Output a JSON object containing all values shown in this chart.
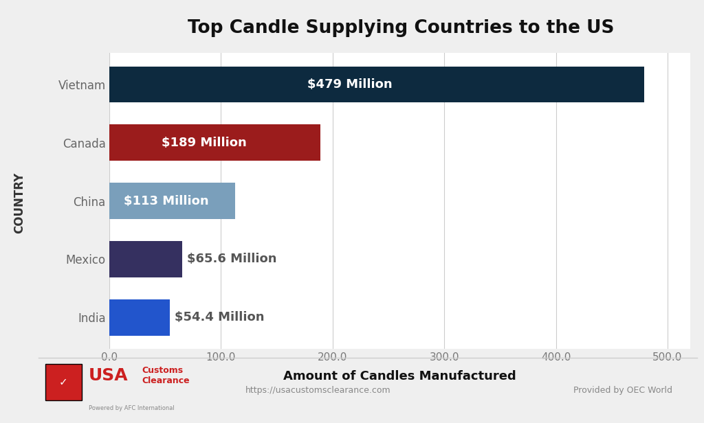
{
  "title": "Top Candle Supplying Countries to the US",
  "categories": [
    "India",
    "Mexico",
    "China",
    "Canada",
    "Vietnam"
  ],
  "values": [
    54.4,
    65.6,
    113,
    189,
    479
  ],
  "bar_colors": [
    "#2255CC",
    "#353060",
    "#7A9FBB",
    "#9B1C1C",
    "#0D2A3F"
  ],
  "bar_labels": [
    "$54.4 Million",
    "$65.6 Million",
    "$113 Million",
    "$189 Million",
    "$479 Million"
  ],
  "label_inside": [
    false,
    false,
    true,
    true,
    true
  ],
  "xlabel": "Amount of Candles Manufactured",
  "ylabel": "COUNTRY",
  "xlim": [
    0,
    520
  ],
  "xticks": [
    0.0,
    100.0,
    200.0,
    300.0,
    400.0,
    500.0
  ],
  "outer_bg": "#EFEFEF",
  "sidebar_bg": "#D0D0D0",
  "plot_bg_color": "#FFFFFF",
  "title_fontsize": 19,
  "label_fontsize": 13,
  "tick_fontsize": 11,
  "ylabel_fontsize": 12,
  "xlabel_fontsize": 13,
  "footer_url": "https://usacustomsclearance.com",
  "footer_right": "Provided by OEC World",
  "bar_height": 0.62
}
